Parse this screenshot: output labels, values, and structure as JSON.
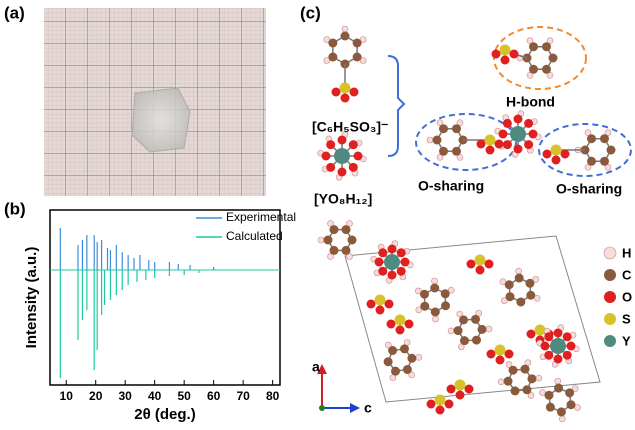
{
  "panels": {
    "a": "(a)",
    "b": "(b)",
    "c": "(c)"
  },
  "chart_data": {
    "type": "stick",
    "xlabel": "2θ (deg.)",
    "ylabel": "Intensity (a.u.)",
    "xlim": [
      4.5,
      82.5
    ],
    "xticks": [
      10,
      20,
      30,
      40,
      50,
      60,
      70,
      80
    ],
    "ylim": [
      -115,
      60
    ],
    "series": [
      {
        "name": "Experimental",
        "color": "#3a8fd8",
        "x": [
          8,
          14,
          15.5,
          17,
          19.5,
          20.5,
          22,
          24,
          25,
          27,
          29,
          31,
          33,
          35,
          38,
          40,
          45,
          48,
          52,
          60
        ],
        "values": [
          42,
          25,
          30,
          35,
          35,
          28,
          30,
          22,
          20,
          25,
          18,
          15,
          12,
          15,
          10,
          8,
          8,
          6,
          5,
          3
        ]
      },
      {
        "name": "Calculated",
        "color": "#1fc8a0",
        "x": [
          8,
          14,
          15.5,
          17,
          19.5,
          20.5,
          22,
          23,
          25,
          27,
          29,
          31,
          34,
          37,
          40,
          45,
          50,
          55
        ],
        "values": [
          -108,
          -70,
          -50,
          -40,
          -100,
          -80,
          -45,
          -35,
          -30,
          -25,
          -20,
          -15,
          -12,
          -10,
          -8,
          -6,
          -5,
          -3
        ]
      }
    ]
  },
  "structure": {
    "anion": "[C₆H₅SO₃]⁻",
    "cation": "[YO₈H₁₂]",
    "hbond": "H-bond",
    "o_sharing_left": "O-sharing",
    "o_sharing_right": "O-sharing",
    "axes": [
      "a",
      "c"
    ],
    "legend": [
      "H",
      "C",
      "O",
      "S",
      "Y"
    ]
  }
}
